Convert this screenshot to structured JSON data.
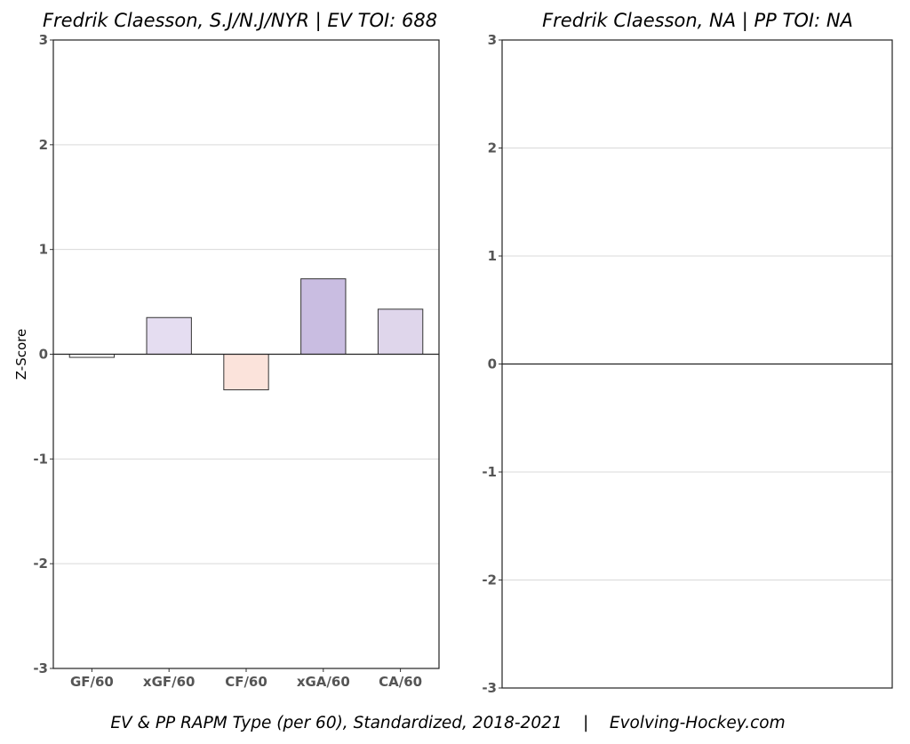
{
  "footer": "EV & PP RAPM Type (per 60), Standardized, 2018-2021    |    Evolving-Hockey.com",
  "chart_data": [
    {
      "type": "bar",
      "title": "Fredrik Claesson, S.J/N.J/NYR  |  EV TOI: 688",
      "xlabel": "",
      "ylabel": "Z-Score",
      "ylim": [
        -3,
        3
      ],
      "yticks": [
        "-3",
        "-2",
        "-1",
        "0",
        "1",
        "2",
        "3"
      ],
      "grid": true,
      "categories": [
        "GF/60",
        "xGF/60",
        "CF/60",
        "xGA/60",
        "CA/60"
      ],
      "values": [
        -0.03,
        0.35,
        -0.34,
        0.72,
        0.43
      ],
      "colors": [
        "#ffffff",
        "#e5ddf1",
        "#fbe3db",
        "#c9bde1",
        "#dfd6eb"
      ]
    },
    {
      "type": "bar",
      "title": "Fredrik Claesson, NA  |  PP TOI: NA",
      "xlabel": "",
      "ylabel": "",
      "ylim": [
        -3,
        3
      ],
      "yticks": [
        "-3",
        "-2",
        "-1",
        "0",
        "1",
        "2",
        "3"
      ],
      "grid": true,
      "categories": [],
      "values": [],
      "colors": []
    }
  ]
}
